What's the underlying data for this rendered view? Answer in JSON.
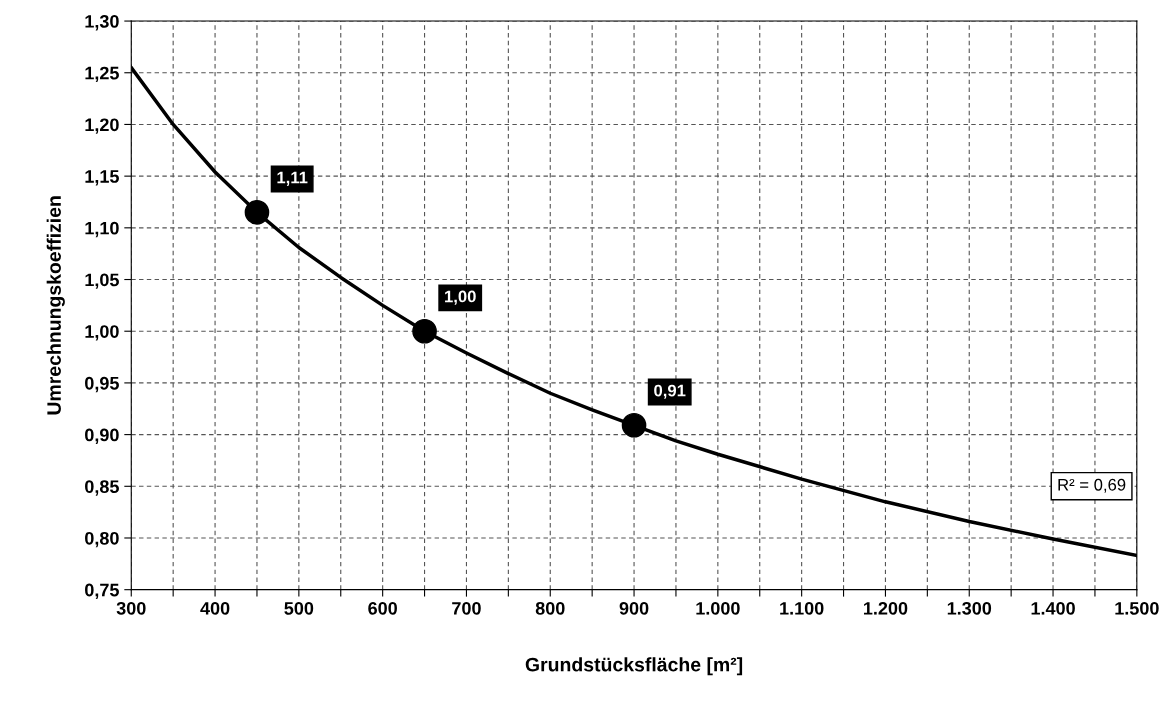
{
  "chart_data": {
    "type": "line",
    "xlabel": "Grundstücksfläche [m²]",
    "ylabel": "Umrechnungskoeffizien",
    "series": [
      {
        "color": "#000000",
        "marker": "none",
        "line_style": "solid",
        "x": [
          300,
          350,
          400,
          450,
          500,
          550,
          600,
          650,
          700,
          750,
          800,
          850,
          900,
          950,
          1000,
          1100,
          1200,
          1300,
          1400,
          1500
        ],
        "values": [
          1.255,
          1.2,
          1.154,
          1.115,
          1.081,
          1.052,
          1.025,
          1.0,
          0.979,
          0.959,
          0.94,
          0.924,
          0.909,
          0.894,
          0.881,
          0.857,
          0.835,
          0.816,
          0.799,
          0.783
        ]
      },
      {
        "type": "scatter",
        "color": "#000000",
        "marker": "circle",
        "x": [
          450,
          650,
          900
        ],
        "values": [
          1.115,
          1.0,
          0.909
        ],
        "value_labels": [
          "1,11",
          "1,00",
          "0,91"
        ]
      }
    ],
    "annotations": [
      "R² = 0,69"
    ],
    "xlim": [
      300,
      1500
    ],
    "xticks": [
      300,
      {
        "value": 350,
        "label": null
      },
      400,
      {
        "value": 450,
        "label": null
      },
      500,
      {
        "value": 550,
        "label": null
      },
      600,
      {
        "value": 650,
        "label": null
      },
      700,
      {
        "value": 750,
        "label": null
      },
      800,
      {
        "value": 850,
        "label": null
      },
      900,
      {
        "value": 950,
        "label": null
      },
      {
        "value": 1000,
        "label": "1.000"
      },
      {
        "value": 1050,
        "label": null
      },
      {
        "value": 1100,
        "label": "1.100"
      },
      {
        "value": 1150,
        "label": null
      },
      {
        "value": 1200,
        "label": "1.200"
      },
      {
        "value": 1250,
        "label": null
      },
      {
        "value": 1300,
        "label": "1.300"
      },
      {
        "value": 1350,
        "label": null
      },
      {
        "value": 1400,
        "label": "1.400"
      },
      {
        "value": 1450,
        "label": null
      },
      {
        "value": 1500,
        "label": "1.500"
      }
    ],
    "ylim": [
      0.75,
      1.3
    ],
    "yticks": [
      {
        "value": 0.75,
        "label": "0,75"
      },
      {
        "value": 0.8,
        "label": "0,80"
      },
      {
        "value": 0.85,
        "label": "0,85"
      },
      {
        "value": 0.9,
        "label": "0,90"
      },
      {
        "value": 0.95,
        "label": "0,95"
      },
      {
        "value": 1.0,
        "label": "1,00"
      },
      {
        "value": 1.05,
        "label": "1,05"
      },
      {
        "value": 1.1,
        "label": "1,10"
      },
      {
        "value": 1.15,
        "label": "1,15"
      },
      {
        "value": 1.2,
        "label": "1,20"
      },
      {
        "value": 1.25,
        "label": "1,25"
      },
      {
        "value": 1.3,
        "label": "1,30"
      }
    ],
    "grid": true,
    "legend": false
  }
}
